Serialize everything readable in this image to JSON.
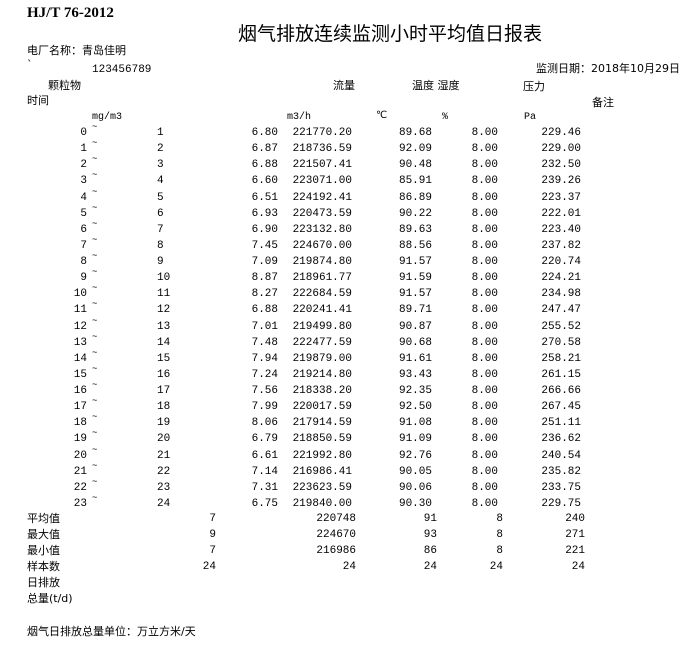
{
  "standard": "HJ/T 76-2012",
  "title": "烟气排放连续监测小时平均值日报表",
  "plant_label": "电厂名称：",
  "plant_name": "青岛佳明",
  "tick_mark": "`",
  "plant_code": "123456789",
  "date_label": "监测日期：",
  "date_value": "2018年10月29日",
  "headers": {
    "particulate": "颗粒物",
    "flow": "流量",
    "temp_humidity": "温度 湿度",
    "pressure": "压力",
    "time": "时间",
    "remark": "备注"
  },
  "units": {
    "particulate": "mg/m3",
    "flow": "m3/h",
    "temp": "℃",
    "humidity": "%",
    "pressure": "Pa"
  },
  "range_symbol": "~",
  "rows": [
    [
      "0",
      "1",
      "6.80",
      "221770.20",
      "89.68",
      "8.00",
      "229.46"
    ],
    [
      "1",
      "2",
      "6.87",
      "218736.59",
      "92.09",
      "8.00",
      "229.00"
    ],
    [
      "2",
      "3",
      "6.88",
      "221507.41",
      "90.48",
      "8.00",
      "232.50"
    ],
    [
      "3",
      "4",
      "6.60",
      "223071.00",
      "85.91",
      "8.00",
      "239.26"
    ],
    [
      "4",
      "5",
      "6.51",
      "224192.41",
      "86.89",
      "8.00",
      "223.37"
    ],
    [
      "5",
      "6",
      "6.93",
      "220473.59",
      "90.22",
      "8.00",
      "222.01"
    ],
    [
      "6",
      "7",
      "6.90",
      "223132.80",
      "89.63",
      "8.00",
      "223.40"
    ],
    [
      "7",
      "8",
      "7.45",
      "224670.00",
      "88.56",
      "8.00",
      "237.82"
    ],
    [
      "8",
      "9",
      "7.09",
      "219874.80",
      "91.57",
      "8.00",
      "220.74"
    ],
    [
      "9",
      "10",
      "8.87",
      "218961.77",
      "91.59",
      "8.00",
      "224.21"
    ],
    [
      "10",
      "11",
      "8.27",
      "222684.59",
      "91.57",
      "8.00",
      "234.98"
    ],
    [
      "11",
      "12",
      "6.88",
      "220241.41",
      "89.71",
      "8.00",
      "247.47"
    ],
    [
      "12",
      "13",
      "7.01",
      "219499.80",
      "90.87",
      "8.00",
      "255.52"
    ],
    [
      "13",
      "14",
      "7.48",
      "222477.59",
      "90.68",
      "8.00",
      "270.58"
    ],
    [
      "14",
      "15",
      "7.94",
      "219879.00",
      "91.61",
      "8.00",
      "258.21"
    ],
    [
      "15",
      "16",
      "7.24",
      "219214.80",
      "93.43",
      "8.00",
      "261.15"
    ],
    [
      "16",
      "17",
      "7.56",
      "218338.20",
      "92.35",
      "8.00",
      "266.66"
    ],
    [
      "17",
      "18",
      "7.99",
      "220017.59",
      "92.50",
      "8.00",
      "267.45"
    ],
    [
      "18",
      "19",
      "8.06",
      "217914.59",
      "91.08",
      "8.00",
      "251.11"
    ],
    [
      "19",
      "20",
      "6.79",
      "218850.59",
      "91.09",
      "8.00",
      "236.62"
    ],
    [
      "20",
      "21",
      "6.61",
      "221992.80",
      "92.76",
      "8.00",
      "240.54"
    ],
    [
      "21",
      "22",
      "7.14",
      "216986.41",
      "90.05",
      "8.00",
      "235.82"
    ],
    [
      "22",
      "23",
      "7.31",
      "223623.59",
      "90.06",
      "8.00",
      "233.75"
    ],
    [
      "23",
      "24",
      "6.75",
      "219840.00",
      "90.30",
      "8.00",
      "229.75"
    ]
  ],
  "summary": [
    {
      "label": "平均值",
      "values": [
        "7",
        "220748",
        "91",
        "8",
        "240"
      ]
    },
    {
      "label": "最大值",
      "values": [
        "9",
        "224670",
        "93",
        "8",
        "271"
      ]
    },
    {
      "label": "最小值",
      "values": [
        "7",
        "216986",
        "86",
        "8",
        "221"
      ]
    },
    {
      "label": "样本数",
      "values": [
        "24",
        "24",
        "24",
        "24",
        "24"
      ]
    }
  ],
  "daily_total_label_1": "日排放",
  "daily_total_label_2": "总量(t/d)",
  "footer_note": "烟气日排放总量单位：万立方米/天"
}
